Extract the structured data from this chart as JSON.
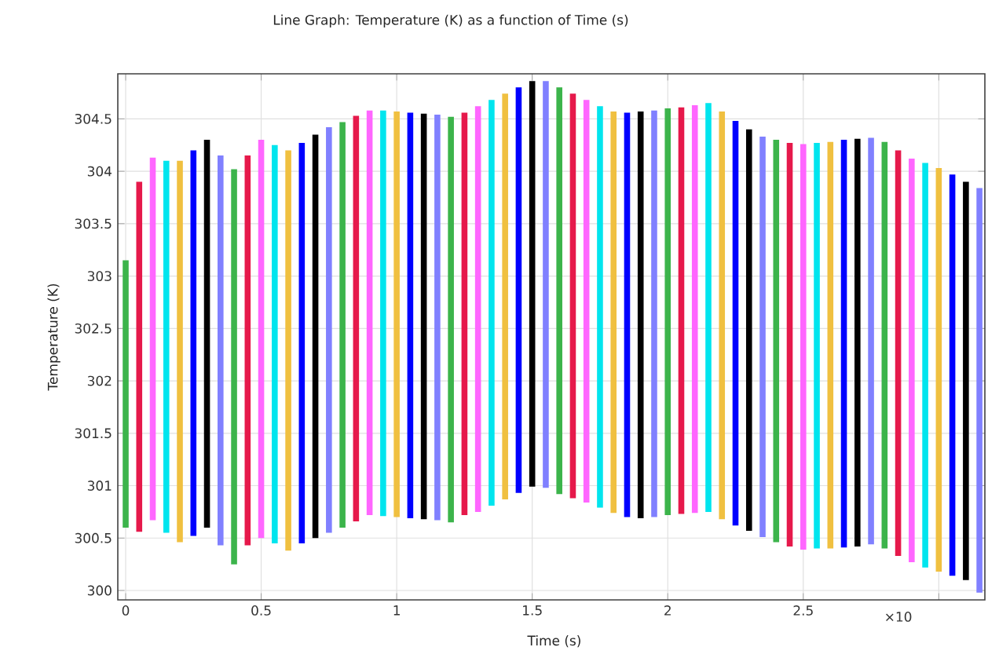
{
  "chart_data": {
    "type": "bar",
    "title": "Line Graph: Temperature (K) as a function of Time (s)",
    "xlabel": "Time (s)",
    "ylabel": "Temperature (K)",
    "x": [
      0,
      0.05,
      0.1,
      0.15,
      0.2,
      0.25,
      0.3,
      0.35,
      0.4,
      0.45,
      0.5,
      0.55,
      0.6,
      0.65,
      0.7,
      0.75,
      0.8,
      0.85,
      0.9,
      0.95,
      1.0,
      1.05,
      1.1,
      1.15,
      1.2,
      1.25,
      1.3,
      1.35,
      1.4,
      1.45,
      1.5,
      1.55,
      1.6,
      1.65,
      1.7,
      1.75,
      1.8,
      1.85,
      1.9,
      1.95,
      2.0,
      2.05,
      2.1,
      2.15,
      2.2,
      2.25,
      2.3,
      2.35,
      2.4,
      2.45,
      2.5,
      2.55,
      2.6,
      2.65,
      2.7,
      2.75,
      2.8,
      2.85,
      2.9,
      2.95,
      3.0,
      3.05,
      3.1,
      3.15
    ],
    "base": [
      300.6,
      300.56,
      300.67,
      300.55,
      300.46,
      300.52,
      300.6,
      300.43,
      300.25,
      300.43,
      300.5,
      300.45,
      300.38,
      300.45,
      300.5,
      300.55,
      300.6,
      300.66,
      300.72,
      300.71,
      300.7,
      300.69,
      300.68,
      300.67,
      300.65,
      300.72,
      300.75,
      300.81,
      300.87,
      300.93,
      300.99,
      300.98,
      300.92,
      300.88,
      300.84,
      300.79,
      300.74,
      300.7,
      300.69,
      300.7,
      300.72,
      300.73,
      300.74,
      300.75,
      300.68,
      300.62,
      300.57,
      300.51,
      300.46,
      300.42,
      300.39,
      300.4,
      300.4,
      300.41,
      300.42,
      300.44,
      300.4,
      300.33,
      300.27,
      300.22,
      300.18,
      300.14,
      300.1,
      299.98
    ],
    "values": [
      2.55,
      3.34,
      3.46,
      3.55,
      3.64,
      3.68,
      3.7,
      3.72,
      3.77,
      3.72,
      3.8,
      3.8,
      3.82,
      3.82,
      3.85,
      3.87,
      3.87,
      3.87,
      3.86,
      3.87,
      3.87,
      3.87,
      3.87,
      3.87,
      3.87,
      3.84,
      3.87,
      3.87,
      3.87,
      3.87,
      3.87,
      3.88,
      3.88,
      3.86,
      3.84,
      3.83,
      3.83,
      3.86,
      3.88,
      3.88,
      3.88,
      3.88,
      3.89,
      3.9,
      3.89,
      3.86,
      3.83,
      3.82,
      3.84,
      3.85,
      3.87,
      3.87,
      3.88,
      3.89,
      3.89,
      3.88,
      3.88,
      3.87,
      3.85,
      3.86,
      3.85,
      3.83,
      3.8,
      3.86
    ],
    "colors": [
      "#3cb44b",
      "#e6194b",
      "#ff66ff",
      "#00e5ee",
      "#f0c040",
      "#0000ff",
      "#000000",
      "#8080ff",
      "#3cb44b",
      "#e6194b",
      "#ff66ff",
      "#00e5ee",
      "#f0c040",
      "#0000ff",
      "#000000",
      "#8080ff",
      "#3cb44b",
      "#e6194b",
      "#ff66ff",
      "#00e5ee",
      "#f0c040",
      "#0000ff",
      "#000000",
      "#8080ff",
      "#3cb44b",
      "#e6194b",
      "#ff66ff",
      "#00e5ee",
      "#f0c040",
      "#0000ff",
      "#000000",
      "#8080ff",
      "#3cb44b",
      "#e6194b",
      "#ff66ff",
      "#00e5ee",
      "#f0c040",
      "#0000ff",
      "#000000",
      "#8080ff",
      "#3cb44b",
      "#e6194b",
      "#ff66ff",
      "#00e5ee",
      "#f0c040",
      "#0000ff",
      "#000000",
      "#8080ff",
      "#3cb44b",
      "#e6194b",
      "#ff66ff",
      "#00e5ee",
      "#f0c040",
      "#0000ff",
      "#000000",
      "#8080ff",
      "#3cb44b",
      "#e6194b",
      "#ff66ff",
      "#00e5ee",
      "#f0c040",
      "#0000ff",
      "#000000",
      "#8080ff"
    ],
    "xlim": [
      -0.029,
      3.17
    ],
    "ylim": [
      299.91,
      304.93
    ],
    "xticks": [
      0,
      0.5,
      1,
      1.5,
      2,
      2.5,
      {
        "value": 3,
        "label": null
      }
    ],
    "annotations": [
      "×10"
    ],
    "yticks": [
      300,
      300.5,
      301,
      301.5,
      302,
      302.5,
      303,
      303.5,
      304,
      304.5
    ],
    "grid": true
  }
}
